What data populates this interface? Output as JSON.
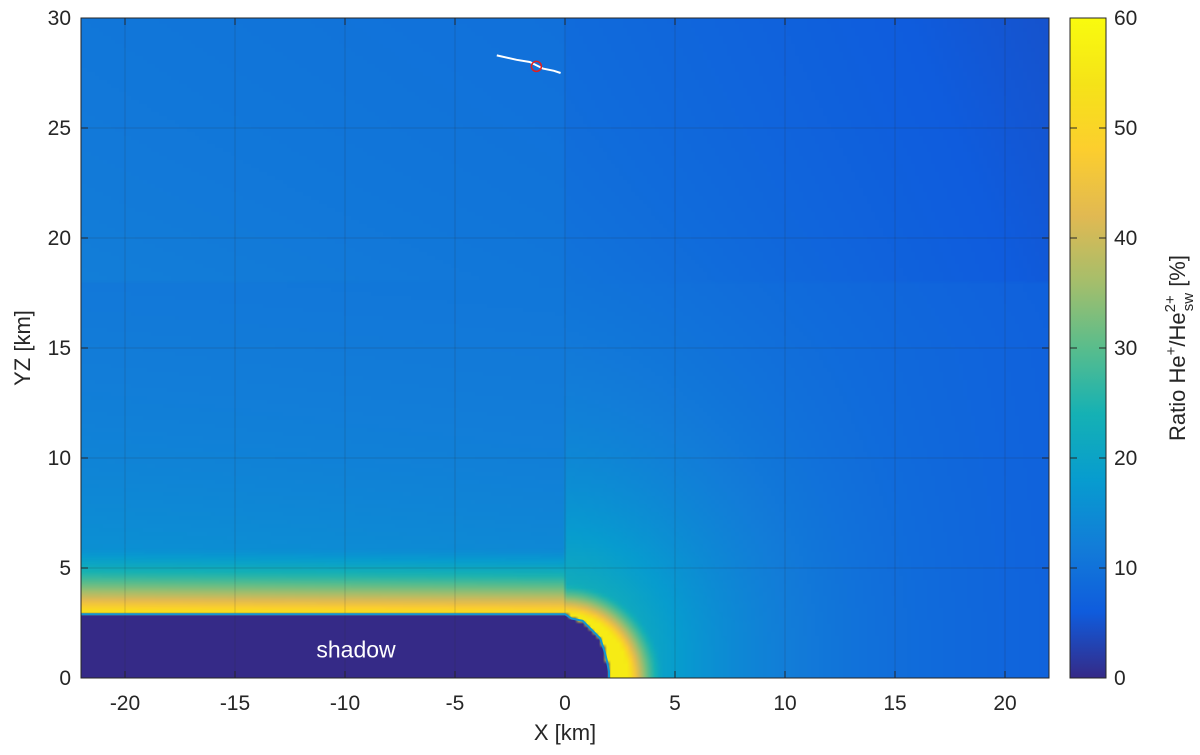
{
  "chart_data": {
    "type": "heatmap",
    "xlabel": "X [km]",
    "ylabel": "YZ [km]",
    "xlim": [
      -22,
      22
    ],
    "ylim": [
      0,
      30
    ],
    "xticks": [
      -20,
      -15,
      -10,
      -5,
      0,
      5,
      10,
      15,
      20
    ],
    "yticks": [
      0,
      5,
      10,
      15,
      20,
      25,
      30
    ],
    "grid": true,
    "colormap": "parula",
    "colorbar": {
      "label": "Ratio He+/He2+ sw [%]",
      "label_parts": {
        "base1": "Ratio He",
        "sup1": "+",
        "base2": "/He",
        "sup2": "2+",
        "sub2": "sw",
        "unit": " [%]"
      },
      "range": [
        0,
        60
      ],
      "ticks": [
        0,
        10,
        20,
        30,
        40,
        50,
        60
      ]
    },
    "annotations": [
      {
        "text": "shadow",
        "x": -9.5,
        "y": 1.2
      }
    ],
    "shadow_boundary": [
      [
        -22,
        2.9
      ],
      [
        0,
        2.9
      ],
      [
        0.3,
        2.7
      ],
      [
        0.8,
        2.6
      ],
      [
        1.2,
        2.2
      ],
      [
        1.6,
        1.8
      ],
      [
        1.8,
        1.2
      ],
      [
        1.9,
        0.8
      ],
      [
        2.0,
        0.3
      ],
      [
        2.0,
        0
      ]
    ],
    "spacecraft_marker": {
      "x": -1.3,
      "y": 27.8,
      "marker": "circle",
      "color": "#e02020"
    },
    "spacecraft_track": [
      [
        -3.1,
        28.3
      ],
      [
        -2.2,
        28.1
      ],
      [
        -1.6,
        28.0
      ],
      [
        -1.0,
        27.7
      ],
      [
        -0.5,
        27.6
      ],
      [
        -0.2,
        27.5
      ]
    ]
  }
}
